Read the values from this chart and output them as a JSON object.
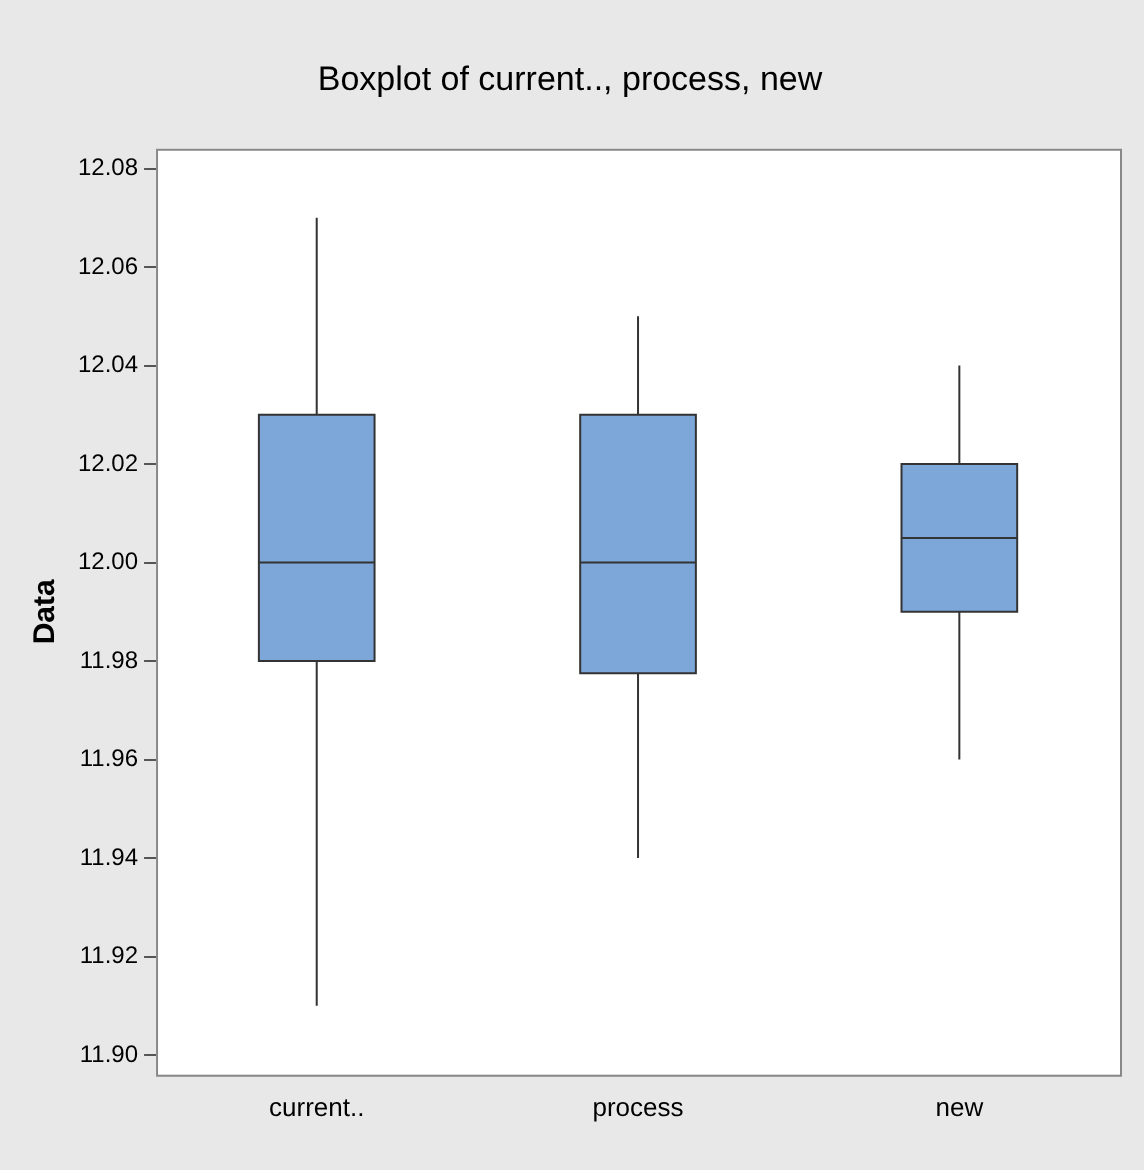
{
  "chart_data": {
    "type": "box",
    "title": "Boxplot of current.., process, new",
    "ylabel": "Data",
    "categories": [
      "current..",
      "process",
      "new"
    ],
    "color": "#7da7d9",
    "boxes": [
      {
        "low": 11.91,
        "q1": 11.98,
        "median": 12.0,
        "q3": 12.03,
        "high": 12.07
      },
      {
        "low": 11.94,
        "q1": 11.9775,
        "median": 12.0,
        "q3": 12.03,
        "high": 12.05
      },
      {
        "low": 11.96,
        "q1": 11.99,
        "median": 12.005,
        "q3": 12.02,
        "high": 12.04
      }
    ],
    "ylim": [
      11.896,
      12.084
    ],
    "yticks": [
      {
        "value": 11.9,
        "label": "11.90"
      },
      {
        "value": 11.92,
        "label": "11.92"
      },
      {
        "value": 11.94,
        "label": "11.94"
      },
      {
        "value": 11.96,
        "label": "11.96"
      },
      {
        "value": 11.98,
        "label": "11.98"
      },
      {
        "value": 12.0,
        "label": "12.00"
      },
      {
        "value": 12.02,
        "label": "12.02"
      },
      {
        "value": 12.04,
        "label": "12.04"
      },
      {
        "value": 12.06,
        "label": "12.06"
      },
      {
        "value": 12.08,
        "label": "12.08"
      }
    ],
    "grid": false,
    "legend": false
  }
}
